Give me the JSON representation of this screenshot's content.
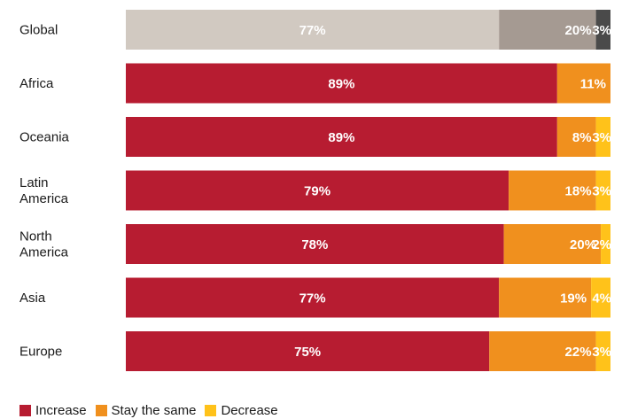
{
  "chart_data": {
    "type": "bar",
    "orientation": "horizontal",
    "stacked": true,
    "categories": [
      "Global",
      "Africa",
      "Oceania",
      "Latin America",
      "North America",
      "Asia",
      "Europe"
    ],
    "category_lines": [
      [
        "Global"
      ],
      [
        "Africa"
      ],
      [
        "Oceania"
      ],
      [
        "Latin",
        "America"
      ],
      [
        "North",
        "America"
      ],
      [
        "Asia"
      ],
      [
        "Europe"
      ]
    ],
    "series": [
      {
        "name": "Increase",
        "values": [
          77,
          89,
          89,
          79,
          78,
          77,
          75
        ]
      },
      {
        "name": "Stay the same",
        "values": [
          20,
          11,
          8,
          18,
          20,
          19,
          22
        ]
      },
      {
        "name": "Decrease",
        "values": [
          3,
          0,
          3,
          3,
          2,
          4,
          3
        ]
      }
    ],
    "series_colors": [
      "#b71c31",
      "#f0901e",
      "#ffc21a"
    ],
    "global_colors": [
      "#d1c9c1",
      "#a59a92",
      "#4a4a4a"
    ],
    "xlim": [
      0,
      100
    ],
    "legend_position": "bottom-left",
    "grid": false
  },
  "legend": {
    "items": [
      {
        "label": "Increase",
        "color": "#b71c31"
      },
      {
        "label": "Stay the same",
        "color": "#f0901e"
      },
      {
        "label": "Decrease",
        "color": "#ffc21a"
      }
    ]
  }
}
